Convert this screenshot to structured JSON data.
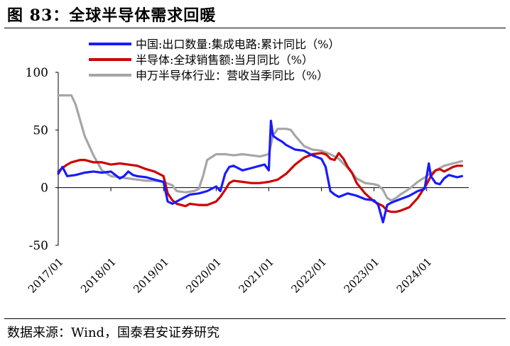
{
  "header": {
    "title": "图 83：全球半导体需求回暖"
  },
  "footer": {
    "source": "数据来源：Wind，国泰君安证券研究"
  },
  "chart_data": {
    "type": "line",
    "title": "图 83：全球半导体需求回暖",
    "xlabel": "",
    "ylabel": "",
    "ylim": [
      -50,
      100
    ],
    "yticks": [
      100,
      50,
      0,
      -50
    ],
    "xlim": [
      2017.0,
      2024.8
    ],
    "categories": [
      "2017/01",
      "2018/01",
      "2019/01",
      "2020/01",
      "2021/01",
      "2022/01",
      "2023/01",
      "2024/01"
    ],
    "legend_position": "top-right",
    "grid": false,
    "series": [
      {
        "name": "中国:出口数量:集成电路:累计同比（%）",
        "color": "#1a1aff",
        "x": [
          2017.0,
          2017.08,
          2017.17,
          2017.33,
          2017.5,
          2017.67,
          2017.83,
          2018.0,
          2018.17,
          2018.25,
          2018.33,
          2018.42,
          2018.5,
          2018.67,
          2018.83,
          2019.0,
          2019.08,
          2019.17,
          2019.25,
          2019.33,
          2019.5,
          2019.67,
          2019.83,
          2020.0,
          2020.08,
          2020.17,
          2020.25,
          2020.33,
          2020.5,
          2020.67,
          2020.83,
          2020.92,
          2021.0,
          2021.04,
          2021.08,
          2021.17,
          2021.25,
          2021.33,
          2021.5,
          2021.67,
          2021.83,
          2022.0,
          2022.08,
          2022.17,
          2022.25,
          2022.33,
          2022.5,
          2022.67,
          2022.83,
          2023.0,
          2023.08,
          2023.17,
          2023.25,
          2023.33,
          2023.5,
          2023.67,
          2023.83,
          2023.96,
          2024.04,
          2024.08,
          2024.17,
          2024.25,
          2024.33,
          2024.42,
          2024.5,
          2024.58,
          2024.67
        ],
        "values": [
          12,
          18,
          10,
          11,
          13,
          14,
          13,
          14,
          8,
          10,
          14,
          11,
          10,
          9,
          7,
          5,
          -12,
          -14,
          -12,
          -10,
          -6,
          -5,
          -3,
          1,
          -3,
          12,
          18,
          19,
          15,
          17,
          19,
          20,
          15,
          58,
          45,
          42,
          40,
          37,
          33,
          32,
          28,
          25,
          18,
          -3,
          -6,
          -8,
          -5,
          -7,
          -10,
          -11,
          -15,
          -30,
          -15,
          -13,
          -10,
          -7,
          -3,
          -1,
          21,
          10,
          4,
          3,
          8,
          11,
          10,
          9,
          10
        ]
      },
      {
        "name": "半导体:全球销售额:当月同比（%）",
        "color": "#cc0000",
        "x": [
          2017.0,
          2017.08,
          2017.17,
          2017.25,
          2017.33,
          2017.42,
          2017.5,
          2017.67,
          2017.83,
          2018.0,
          2018.17,
          2018.33,
          2018.5,
          2018.67,
          2018.83,
          2019.0,
          2019.08,
          2019.17,
          2019.25,
          2019.42,
          2019.5,
          2019.67,
          2019.83,
          2020.0,
          2020.08,
          2020.17,
          2020.25,
          2020.33,
          2020.5,
          2020.67,
          2020.83,
          2021.0,
          2021.17,
          2021.33,
          2021.5,
          2021.67,
          2021.83,
          2022.0,
          2022.08,
          2022.13,
          2022.17,
          2022.25,
          2022.33,
          2022.42,
          2022.5,
          2022.58,
          2022.67,
          2022.83,
          2023.0,
          2023.17,
          2023.25,
          2023.33,
          2023.42,
          2023.5,
          2023.67,
          2023.83,
          2024.0,
          2024.08,
          2024.17,
          2024.25,
          2024.33,
          2024.42,
          2024.5,
          2024.58,
          2024.67
        ],
        "values": [
          14,
          17,
          20,
          22,
          23,
          24,
          24,
          22,
          22,
          20,
          21,
          20,
          19,
          16,
          14,
          10,
          -5,
          -11,
          -14,
          -16,
          -14,
          -15,
          -15,
          -12,
          -8,
          -2,
          4,
          6,
          5,
          4,
          4,
          5,
          7,
          12,
          20,
          26,
          29,
          30,
          29,
          27,
          25,
          24,
          30,
          25,
          18,
          13,
          4,
          -5,
          -12,
          -16,
          -20,
          -21,
          -21,
          -20,
          -17,
          -9,
          3,
          10,
          15,
          16,
          14,
          16,
          18,
          19,
          19
        ]
      },
      {
        "name": "申万半导体行业：营收当季同比（%）",
        "color": "#a6a6a6",
        "x": [
          2017.0,
          2017.17,
          2017.25,
          2017.33,
          2017.5,
          2017.67,
          2017.83,
          2018.0,
          2018.17,
          2018.33,
          2018.5,
          2018.67,
          2018.83,
          2019.0,
          2019.17,
          2019.25,
          2019.42,
          2019.58,
          2019.67,
          2019.75,
          2019.83,
          2020.0,
          2020.17,
          2020.33,
          2020.5,
          2020.67,
          2020.83,
          2021.0,
          2021.08,
          2021.17,
          2021.33,
          2021.42,
          2021.5,
          2021.67,
          2021.83,
          2022.0,
          2022.17,
          2022.33,
          2022.5,
          2022.67,
          2022.83,
          2023.0,
          2023.08,
          2023.17,
          2023.25,
          2023.33,
          2023.42,
          2023.5,
          2023.67,
          2023.83,
          2024.0,
          2024.17,
          2024.33,
          2024.5,
          2024.67
        ],
        "values": [
          80,
          80,
          80,
          72,
          45,
          28,
          15,
          10,
          9,
          8,
          7,
          6,
          6,
          5,
          2,
          -3,
          -4,
          -3,
          -1,
          10,
          24,
          29,
          29,
          28,
          29,
          28,
          27,
          29,
          45,
          51,
          51,
          50,
          45,
          36,
          33,
          32,
          29,
          25,
          17,
          8,
          4,
          3,
          2,
          -2,
          -9,
          -11,
          -9,
          -6,
          -1,
          5,
          10,
          15,
          19,
          21,
          23
        ]
      }
    ]
  }
}
